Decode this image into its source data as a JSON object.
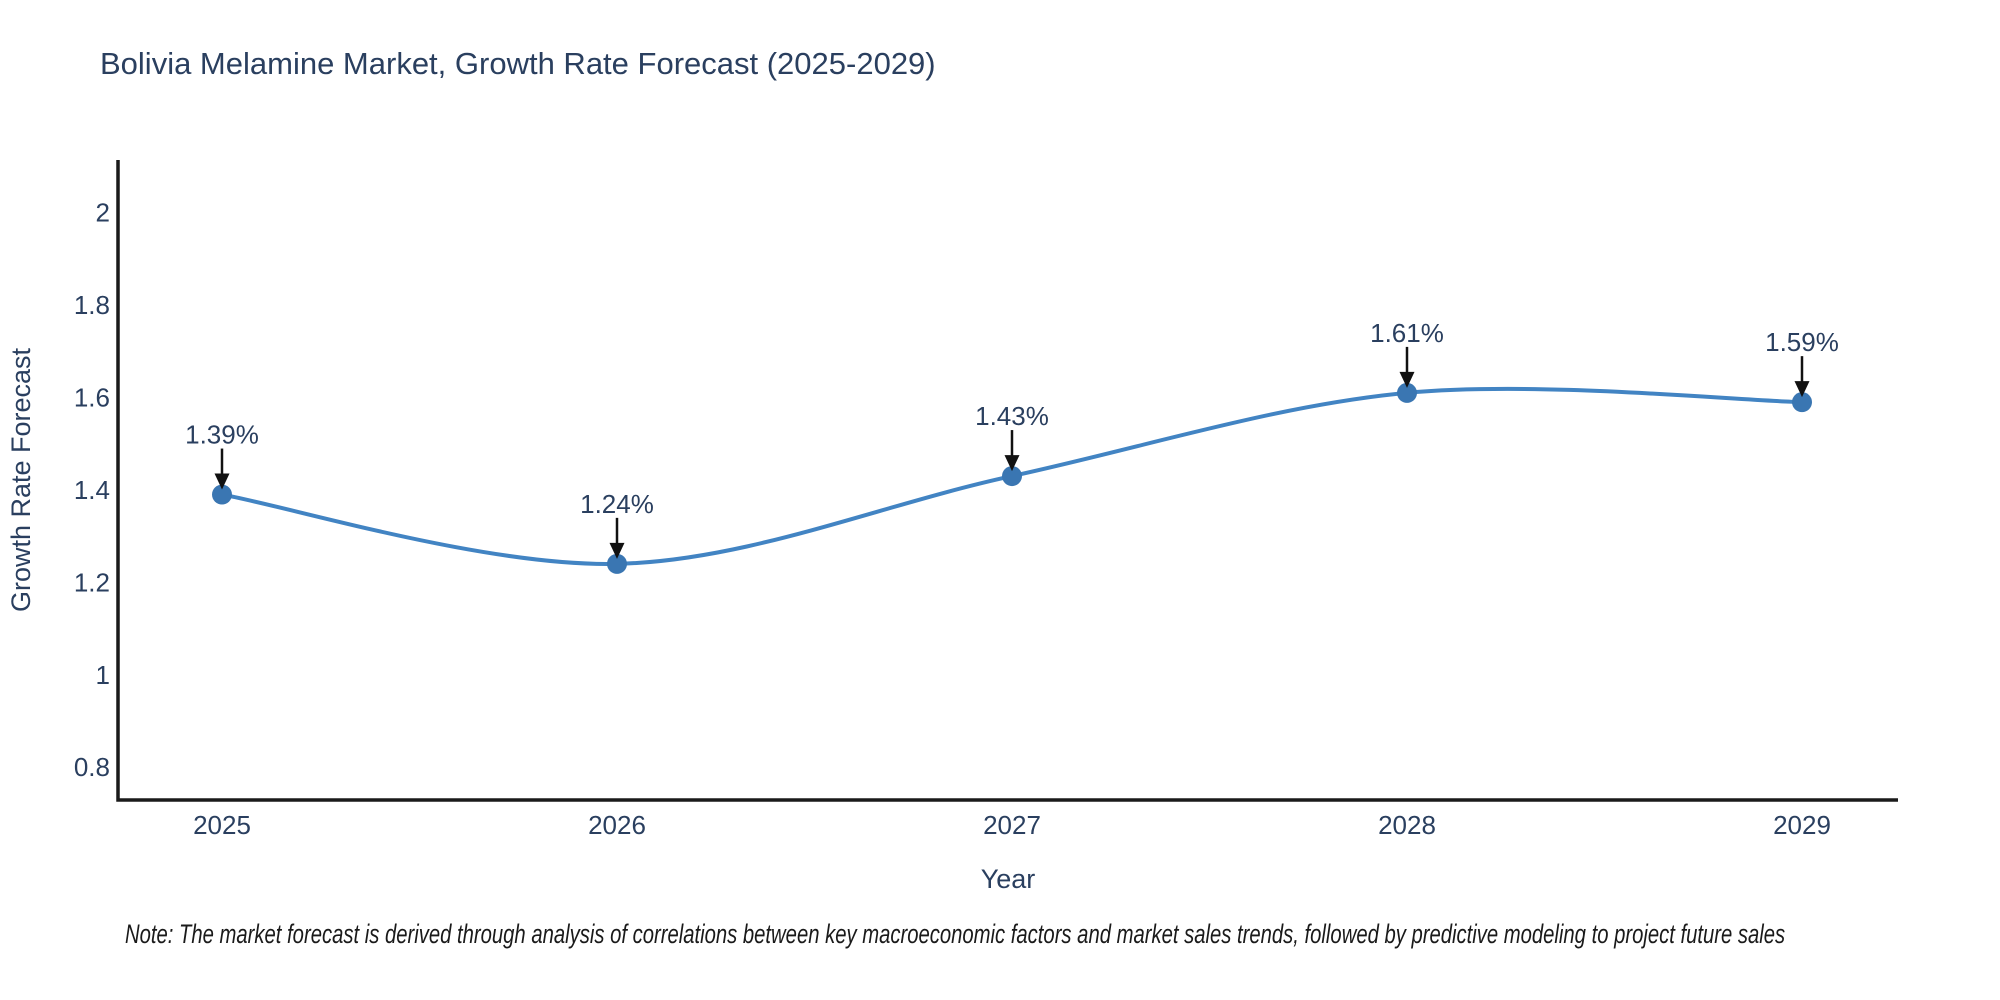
{
  "chart_data": {
    "type": "line",
    "title": "Bolivia Melamine Market, Growth Rate Forecast (2025-2029)",
    "categories": [
      "2025",
      "2026",
      "2027",
      "2028",
      "2029"
    ],
    "x": [
      2025,
      2026,
      2027,
      2028,
      2029
    ],
    "values": [
      1.39,
      1.24,
      1.43,
      1.61,
      1.59
    ],
    "point_labels": [
      "1.39%",
      "1.24%",
      "1.43%",
      "1.61%",
      "1.59%"
    ],
    "xlabel": "Year",
    "ylabel": "Growth Rate Forecast",
    "ytick_values": [
      0.8,
      1,
      1.2,
      1.4,
      1.6,
      1.8,
      2
    ],
    "ytick_labels": [
      "0.8",
      "1",
      "1.2",
      "1.4",
      "1.6",
      "1.8",
      "2"
    ],
    "ylim": [
      0.729,
      2.114
    ],
    "line_shape": "spline",
    "grid": false,
    "legend": "none",
    "colors": {
      "line": "#4284c3",
      "marker": "#3a76b2",
      "arrow": "#111111",
      "text": "#2a3f5f",
      "axis": "#1a1a1a"
    }
  },
  "note": "Note: The market forecast is derived through analysis of correlations between key macroeconomic factors and market sales trends, followed by predictive modeling to project future sales"
}
